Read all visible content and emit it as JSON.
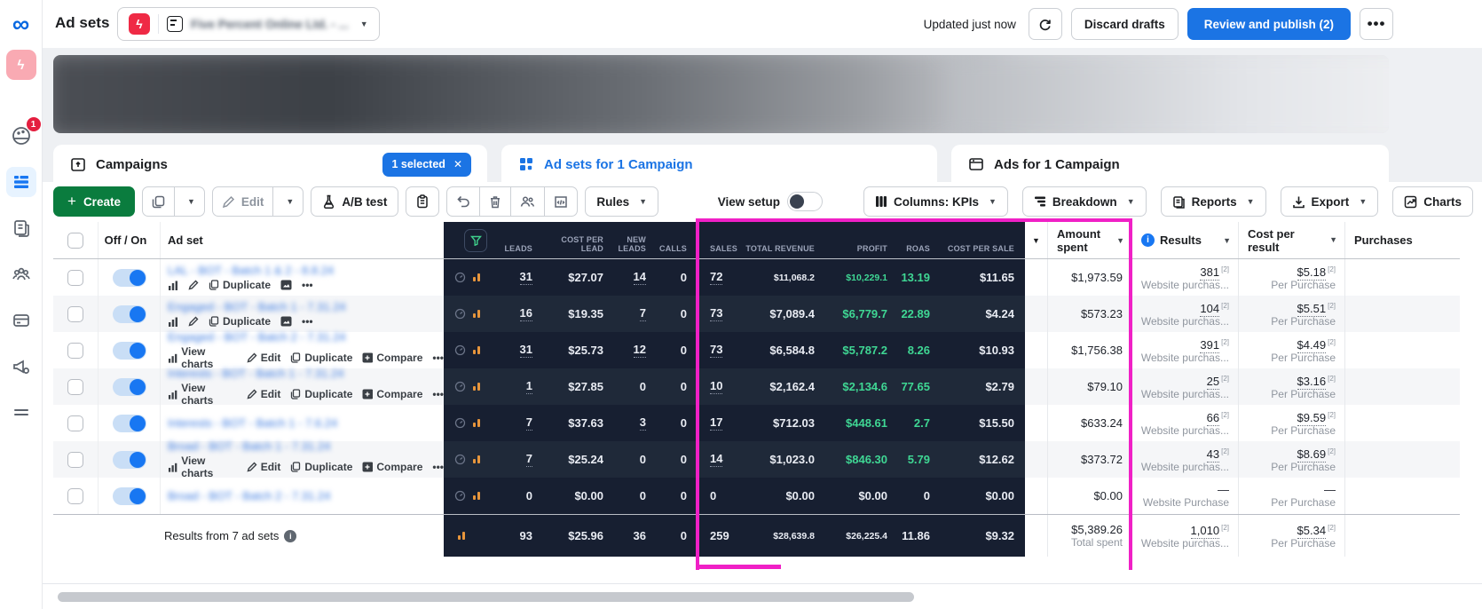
{
  "topbar": {
    "title": "Ad sets",
    "account_name": "Five Percent Online Ltd. - ...",
    "updated": "Updated just now",
    "discard_label": "Discard drafts",
    "publish_label": "Review and publish (2)"
  },
  "sidebar": {
    "notification_count": "1"
  },
  "tabs": {
    "campaigns_label": "Campaigns",
    "selected_chip": "1 selected",
    "adsets_label": "Ad sets for 1 Campaign",
    "ads_label": "Ads for 1 Campaign"
  },
  "toolbar": {
    "create_label": "Create",
    "edit_label": "Edit",
    "ab_test_label": "A/B test",
    "rules_label": "Rules",
    "view_setup_label": "View setup",
    "columns_label": "Columns: KPIs",
    "breakdown_label": "Breakdown",
    "reports_label": "Reports",
    "export_label": "Export",
    "charts_label": "Charts"
  },
  "table": {
    "headers": {
      "onoff": "Off / On",
      "adset": "Ad set",
      "leads": "LEADS",
      "cost_per_lead": "COST PER LEAD",
      "new_leads": "NEW LEADS",
      "calls": "CALLS",
      "sales": "SALES",
      "total_revenue": "TOTAL REVENUE",
      "profit": "PROFIT",
      "roas": "ROAS",
      "cost_per_sale": "COST PER SALE",
      "amount_spent": "Amount spent",
      "results": "Results",
      "cost_per_result": "Cost per result",
      "purchases": "Purchases"
    },
    "actions_labels": {
      "view_charts": "View charts",
      "edit": "Edit",
      "duplicate": "Duplicate",
      "compare": "Compare"
    },
    "rows": [
      {
        "name": "LAL - BOT - Batch 1 & 2 - 8.8.24",
        "actions": "icons",
        "leads": "31",
        "cost_per_lead": "$27.07",
        "new_leads": "14",
        "calls": "0",
        "sales": "72",
        "total_revenue": "$11,068.2",
        "revenue_small": true,
        "profit": "$10,229.1",
        "profit_small": true,
        "roas": "13.19",
        "cost_per_sale": "$11.65",
        "amount_spent": "$1,973.59",
        "results": "381",
        "results_ref": "[2]",
        "results_sub": "Website purchas...",
        "cost_per_result": "$5.18",
        "cpr_ref": "[2]",
        "cost_per_result_sub": "Per Purchase"
      },
      {
        "name": "Engaged - BOT - Batch 1 - 7.31.24",
        "actions": "icons",
        "leads": "16",
        "cost_per_lead": "$19.35",
        "new_leads": "7",
        "calls": "0",
        "sales": "73",
        "total_revenue": "$7,089.4",
        "profit": "$6,779.7",
        "roas": "22.89",
        "cost_per_sale": "$4.24",
        "amount_spent": "$573.23",
        "results": "104",
        "results_ref": "[2]",
        "results_sub": "Website purchas...",
        "cost_per_result": "$5.51",
        "cpr_ref": "[2]",
        "cost_per_result_sub": "Per Purchase"
      },
      {
        "name": "Engaged - BOT - Batch 2 - 7.31.24",
        "actions": "links",
        "leads": "31",
        "cost_per_lead": "$25.73",
        "new_leads": "12",
        "calls": "0",
        "sales": "73",
        "total_revenue": "$6,584.8",
        "profit": "$5,787.2",
        "roas": "8.26",
        "cost_per_sale": "$10.93",
        "amount_spent": "$1,756.38",
        "results": "391",
        "results_ref": "[2]",
        "results_sub": "Website purchas...",
        "cost_per_result": "$4.49",
        "cpr_ref": "[2]",
        "cost_per_result_sub": "Per Purchase"
      },
      {
        "name": "Interests - BOT - Batch 1 - 7.31.24",
        "actions": "links",
        "leads": "1",
        "cost_per_lead": "$27.85",
        "new_leads": "0",
        "calls": "0",
        "sales": "10",
        "total_revenue": "$2,162.4",
        "profit": "$2,134.6",
        "roas": "77.65",
        "cost_per_sale": "$2.79",
        "amount_spent": "$79.10",
        "results": "25",
        "results_ref": "[2]",
        "results_sub": "Website purchas...",
        "cost_per_result": "$3.16",
        "cpr_ref": "[2]",
        "cost_per_result_sub": "Per Purchase"
      },
      {
        "name": "Interests - BOT - Batch 1 - 7.6.24",
        "actions": "none",
        "leads": "7",
        "cost_per_lead": "$37.63",
        "new_leads": "3",
        "calls": "0",
        "sales": "17",
        "total_revenue": "$712.03",
        "profit": "$448.61",
        "roas": "2.7",
        "cost_per_sale": "$15.50",
        "amount_spent": "$633.24",
        "results": "66",
        "results_ref": "[2]",
        "results_sub": "Website purchas...",
        "cost_per_result": "$9.59",
        "cpr_ref": "[2]",
        "cost_per_result_sub": "Per Purchase"
      },
      {
        "name": "Broad - BOT - Batch 1 - 7.31.24",
        "actions": "links",
        "leads": "7",
        "cost_per_lead": "$25.24",
        "new_leads": "0",
        "calls": "0",
        "sales": "14",
        "total_revenue": "$1,023.0",
        "profit": "$846.30",
        "roas": "5.79",
        "cost_per_sale": "$12.62",
        "amount_spent": "$373.72",
        "results": "43",
        "results_ref": "[2]",
        "results_sub": "Website purchas...",
        "cost_per_result": "$8.69",
        "cpr_ref": "[2]",
        "cost_per_result_sub": "Per Purchase"
      },
      {
        "name": "Broad - BOT - Batch 2 - 7.31.24",
        "actions": "none",
        "leads": "0",
        "cost_per_lead": "$0.00",
        "new_leads": "0",
        "calls": "0",
        "sales": "0",
        "total_revenue": "$0.00",
        "profit": "$0.00",
        "roas": "0",
        "cost_per_sale": "$0.00",
        "amount_spent": "$0.00",
        "results": "—",
        "results_ref": "",
        "results_sub": "Website Purchase",
        "cost_per_result": "—",
        "cpr_ref": "",
        "cost_per_result_sub": "Per Purchase"
      }
    ],
    "totals": {
      "label": "Results from 7 ad sets",
      "leads": "93",
      "cost_per_lead": "$25.96",
      "new_leads": "36",
      "calls": "0",
      "sales": "259",
      "total_revenue": "$28,639.8",
      "profit": "$26,225.4",
      "roas": "11.86",
      "cost_per_sale": "$9.32",
      "amount_spent": "$5,389.26",
      "amount_spent_sub": "Total spent",
      "results": "1,010",
      "results_ref": "[2]",
      "results_sub": "Website purchas...",
      "cost_per_result": "$5.34",
      "cpr_ref": "[2]",
      "cost_per_result_sub": "Per Purchase"
    }
  },
  "colors": {
    "accent_blue": "#1B74E4",
    "create_green": "#0A7C3E",
    "highlight_magenta": "#F020C6",
    "profit_green": "#3FD794",
    "dark_table": "#171F31"
  }
}
